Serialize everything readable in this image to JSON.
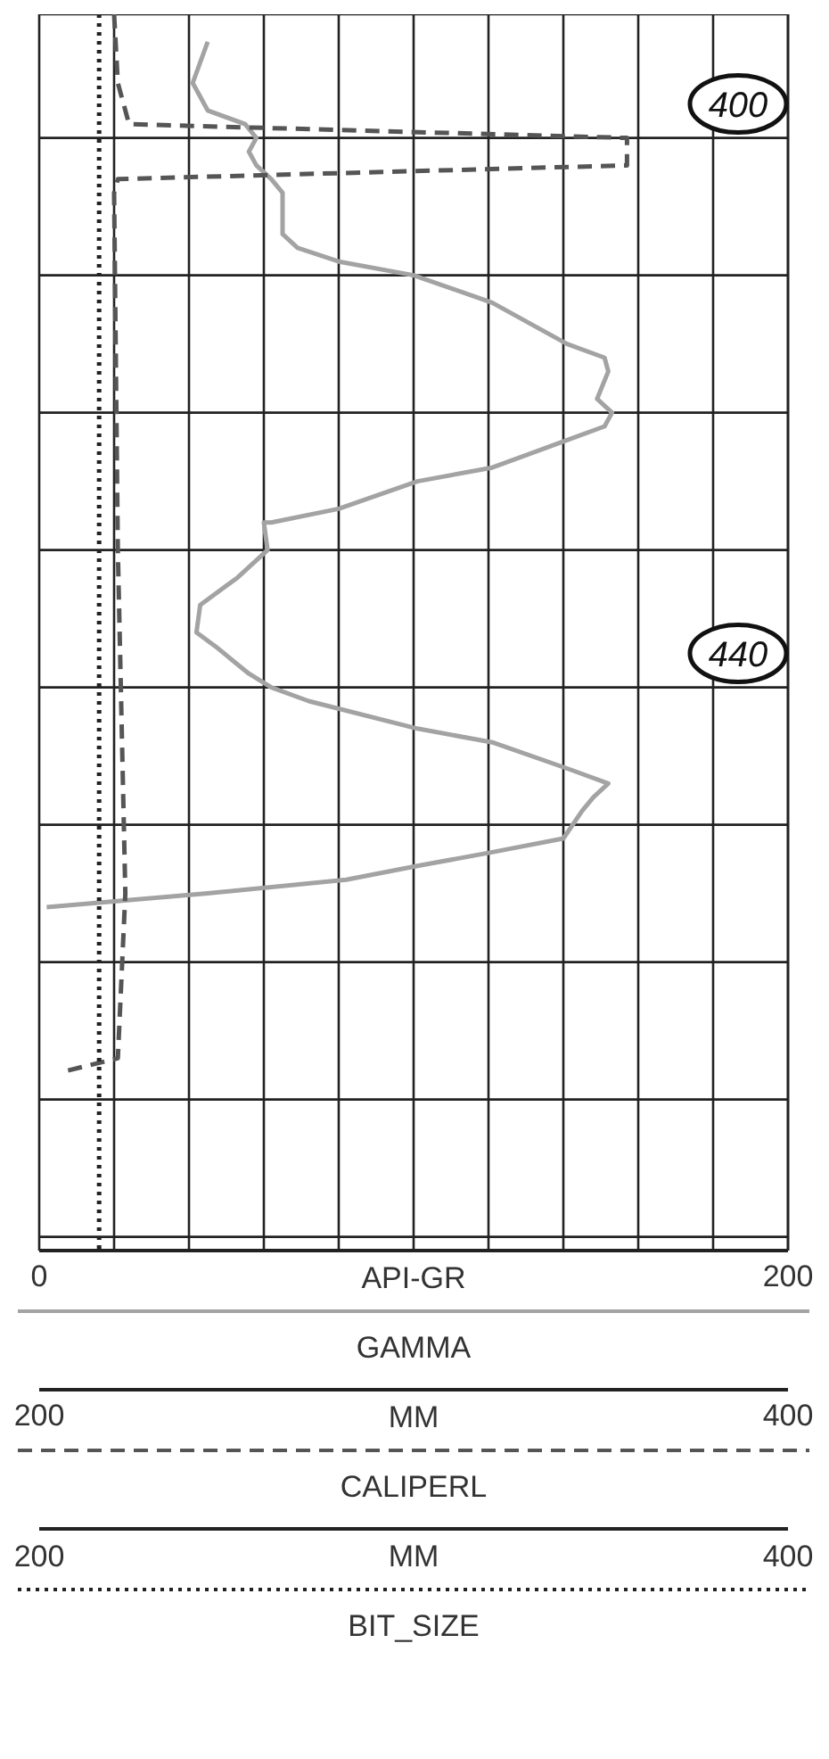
{
  "chart_data": {
    "type": "line",
    "marker": "none",
    "legend": "bottom",
    "grid": true,
    "xlabel": "API-GR",
    "xlim": [
      0,
      200
    ],
    "xticks": [
      0,
      {
        "value": 20,
        "label": null
      },
      {
        "value": 40,
        "label": null
      },
      {
        "value": 60,
        "label": null
      },
      {
        "value": 80,
        "label": null
      },
      {
        "value": 100,
        "label": null
      },
      {
        "value": 120,
        "label": null
      },
      {
        "value": 140,
        "label": null
      },
      {
        "value": 160,
        "label": null
      },
      {
        "value": 180,
        "label": null
      },
      200
    ],
    "x2label": "MM",
    "annotations": [
      "200",
      "MM",
      "400"
    ],
    "x2lim": [
      200,
      400
    ],
    "x2ticks": [
      200,
      400
    ],
    "ylim": [
      481,
      391
    ],
    "yticks": [
      {
        "value": 400,
        "label": "400"
      },
      {
        "value": 410,
        "label": null
      },
      {
        "value": 420,
        "label": null
      },
      {
        "value": 430,
        "label": null
      },
      {
        "value": 440,
        "label": "440"
      },
      {
        "value": 450,
        "label": null
      },
      {
        "value": 460,
        "label": null
      },
      {
        "value": 470,
        "label": null
      },
      {
        "value": 480,
        "label": null
      }
    ],
    "series": [
      {
        "name": "GAMMA",
        "color": "#a3a3a3",
        "line_style": "solid",
        "x": [
          45,
          41,
          45,
          55,
          58,
          56,
          58,
          62,
          65,
          65,
          69,
          80,
          100,
          121,
          141,
          151,
          152,
          149,
          153,
          151,
          141,
          121,
          101,
          80,
          62,
          60,
          61,
          53,
          43,
          42,
          47,
          56,
          62,
          72,
          101,
          121,
          142,
          152,
          148,
          145,
          140,
          121,
          101,
          82,
          45,
          2
        ],
        "values": [
          393,
          396,
          398,
          399,
          400,
          401,
          402,
          403,
          404,
          407,
          408,
          409,
          410,
          412,
          415,
          416,
          417,
          419,
          420,
          421,
          422,
          424,
          425,
          427,
          428,
          428,
          430,
          432,
          434,
          436,
          437,
          439,
          440,
          441,
          443,
          444,
          446,
          447,
          448,
          449,
          451,
          452,
          453,
          454,
          455,
          456
        ]
      },
      {
        "name": "CALIPERL",
        "color": "#555555",
        "line_style": "dashed",
        "axis": "x2",
        "x": [
          220,
          221,
          224,
          357,
          357,
          221,
          220,
          221,
          223,
          221,
          206
        ],
        "values": [
          391,
          396,
          399,
          400,
          402,
          403,
          404,
          430,
          455,
          467,
          468
        ]
      },
      {
        "name": "BIT_SIZE",
        "color": "#222222",
        "line_style": "dotted",
        "axis": "x2",
        "x": [
          216,
          216
        ],
        "values": [
          391,
          481
        ]
      }
    ]
  }
}
